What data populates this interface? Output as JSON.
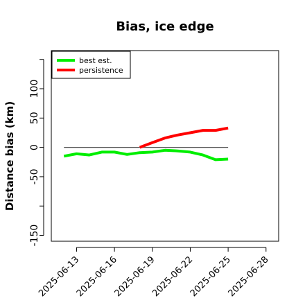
{
  "chart_data": {
    "type": "line",
    "title": "Bias, ice edge",
    "xlabel": "",
    "ylabel": "Distance bias (km)",
    "x_start": "2025-06-11",
    "xlim": [
      "2025-06-11",
      "2025-06-29"
    ],
    "ylim": [
      -160,
      165
    ],
    "y_ticks": [
      -150,
      -50,
      0,
      50,
      100
    ],
    "x_ticks": [
      "2025-06-13",
      "2025-06-16",
      "2025-06-19",
      "2025-06-22",
      "2025-06-25",
      "2025-06-28"
    ],
    "reference_line": 0,
    "grid": false,
    "legend_position": "top-left",
    "series": [
      {
        "name": "best est.",
        "color": "#00ee00",
        "x": [
          "2025-06-12",
          "2025-06-13",
          "2025-06-14",
          "2025-06-15",
          "2025-06-16",
          "2025-06-17",
          "2025-06-18",
          "2025-06-19",
          "2025-06-20",
          "2025-06-21",
          "2025-06-22",
          "2025-06-23",
          "2025-06-24",
          "2025-06-25"
        ],
        "values": [
          -15,
          -11,
          -13,
          -8,
          -8,
          -12,
          -9,
          -8,
          -5,
          -6,
          -8,
          -13,
          -21,
          -20
        ]
      },
      {
        "name": "persistence",
        "color": "#ff0000",
        "x": [
          "2025-06-18",
          "2025-06-19",
          "2025-06-20",
          "2025-06-21",
          "2025-06-22",
          "2025-06-23",
          "2025-06-24",
          "2025-06-25"
        ],
        "values": [
          0,
          8,
          16,
          21,
          25,
          29,
          29,
          33
        ]
      }
    ]
  }
}
